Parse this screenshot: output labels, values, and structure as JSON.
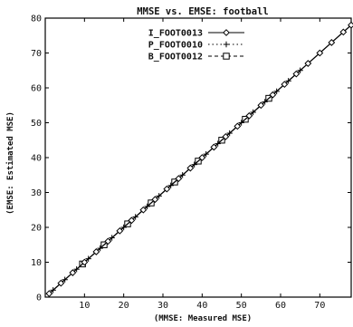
{
  "chart_data": {
    "type": "line",
    "title": "MMSE vs. EMSE: football",
    "xlabel": "(MMSE: Measured MSE)",
    "ylabel": "(EMSE: Estimated MSE)",
    "xlim": [
      0,
      78
    ],
    "ylim": [
      0,
      80
    ],
    "xticks": [
      10,
      20,
      30,
      40,
      50,
      60,
      70
    ],
    "yticks": [
      0,
      10,
      20,
      30,
      40,
      50,
      60,
      70,
      80
    ],
    "grid": false,
    "legend_position": "top-center",
    "series": [
      {
        "name": "I_FOOT0013",
        "marker": "diamond",
        "line": "solid",
        "x": [
          1,
          4,
          7,
          10,
          13,
          16,
          19,
          22,
          25,
          28,
          31,
          34,
          37,
          40,
          43,
          46,
          49,
          52,
          55,
          58,
          61,
          64,
          67,
          70,
          73,
          76,
          78
        ],
        "y": [
          1,
          4,
          7,
          10,
          13,
          16,
          19,
          22,
          25,
          28,
          31,
          34,
          37,
          40,
          43,
          46,
          49,
          52,
          55,
          58,
          61,
          64,
          67,
          70,
          73,
          76,
          78
        ]
      },
      {
        "name": "P_FOOT0010",
        "marker": "plus",
        "line": "dotted",
        "x": [
          2,
          5,
          8,
          11,
          14,
          17,
          20,
          23,
          26,
          29,
          32,
          35,
          38,
          41,
          44,
          47,
          50,
          53,
          56,
          59,
          62,
          65
        ],
        "y": [
          2,
          5,
          8,
          11,
          14,
          17,
          20,
          23,
          26,
          29,
          32,
          35,
          38,
          41,
          44,
          47,
          50,
          53,
          56,
          59,
          62,
          65
        ]
      },
      {
        "name": "B_FOOT0012",
        "marker": "square",
        "line": "dashed",
        "x": [
          9.5,
          15,
          21,
          27,
          33,
          39,
          45,
          51,
          57
        ],
        "y": [
          9.5,
          15,
          21,
          27,
          33,
          39,
          45,
          51,
          57
        ]
      }
    ]
  }
}
